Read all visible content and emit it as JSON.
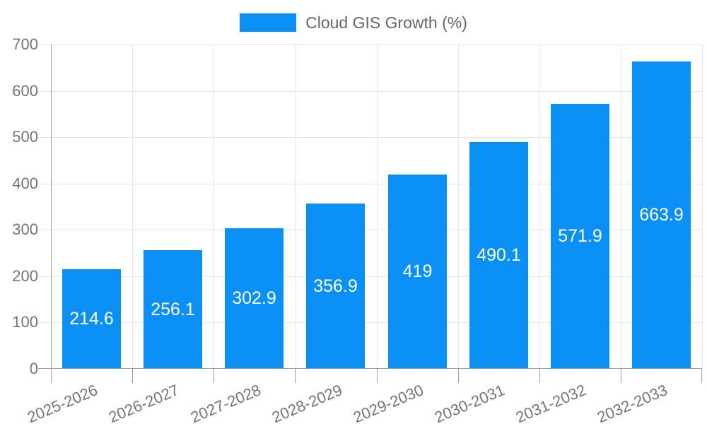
{
  "colors": {
    "bar": "#0a90f5",
    "grid": "#e7e7e7",
    "axis": "#9e9e9e",
    "tick_text": "#757575",
    "legend_text": "#666666",
    "value_text": "#ffffff",
    "background": "#ffffff"
  },
  "chart_data": {
    "type": "bar",
    "title": "",
    "legend": {
      "label": "Cloud GIS Growth (%)",
      "position": "top"
    },
    "categories": [
      "2025-2026",
      "2026-2027",
      "2027-2028",
      "2028-2029",
      "2029-2030",
      "2030-2031",
      "2031-2032",
      "2032-2033"
    ],
    "series": [
      {
        "name": "Cloud GIS Growth (%)",
        "values": [
          214.6,
          256.1,
          302.9,
          356.9,
          419,
          490.1,
          571.9,
          663.9
        ]
      }
    ],
    "value_labels": [
      "214.6",
      "256.1",
      "302.9",
      "356.9",
      "419",
      "490.1",
      "571.9",
      "663.9"
    ],
    "xlabel": "",
    "ylabel": "",
    "ylim": [
      0,
      700
    ],
    "ytick_step": 100,
    "ytick_labels": [
      "0",
      "100",
      "200",
      "300",
      "400",
      "500",
      "600",
      "700"
    ],
    "grid": true,
    "x_tick_rotation_deg": -23,
    "bar_value_position": "center"
  }
}
